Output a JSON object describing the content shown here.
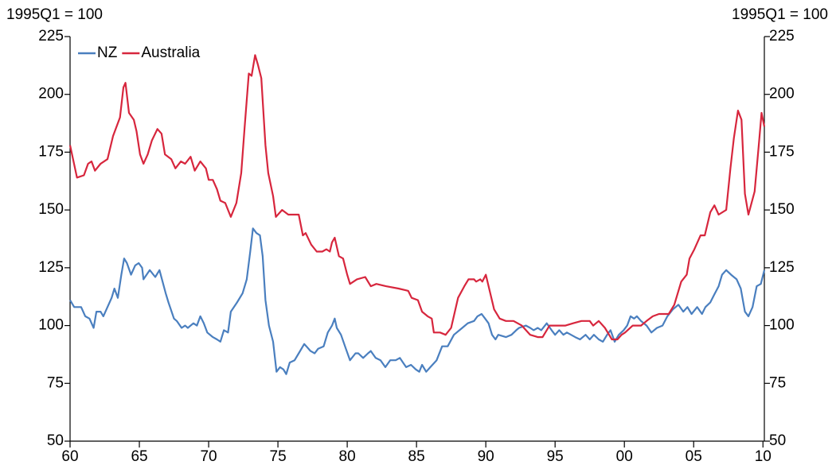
{
  "chart_data": {
    "type": "line",
    "ylabel": "1995Q1 = 100",
    "y2label": "1995Q1 = 100",
    "xlim": [
      1960,
      2010.1
    ],
    "xticks": [
      {
        "value": 1960,
        "label": "60"
      },
      {
        "value": 1965,
        "label": "65"
      },
      {
        "value": 1970,
        "label": "70"
      },
      {
        "value": 1975,
        "label": "75"
      },
      {
        "value": 1980,
        "label": "80"
      },
      {
        "value": 1985,
        "label": "85"
      },
      {
        "value": 1990,
        "label": "90"
      },
      {
        "value": 1995,
        "label": "95"
      },
      {
        "value": 2000,
        "label": "00"
      },
      {
        "value": 2005,
        "label": "05"
      },
      {
        "value": 2010,
        "label": "10"
      }
    ],
    "ylim": [
      50,
      225
    ],
    "yticks": [
      50,
      75,
      100,
      125,
      150,
      175,
      200,
      225
    ],
    "y2lim": [
      50,
      225
    ],
    "y2ticks": [
      50,
      75,
      100,
      125,
      150,
      175,
      200,
      225
    ],
    "legend": "upper left",
    "series": [
      {
        "name": "NZ",
        "color": "#4a7fbf",
        "x": [
          1960,
          1960.3,
          1960.8,
          1961.1,
          1961.4,
          1961.7,
          1961.9,
          1962.2,
          1962.4,
          1963,
          1963.2,
          1963.45,
          1963.7,
          1963.9,
          1964.1,
          1964.4,
          1964.7,
          1964.95,
          1965.2,
          1965.3,
          1965.75,
          1966.15,
          1966.45,
          1966.9,
          1967.1,
          1967.5,
          1967.7,
          1968.05,
          1968.3,
          1968.5,
          1968.9,
          1969.15,
          1969.4,
          1969.65,
          1969.9,
          1970.3,
          1970.6,
          1970.85,
          1971.1,
          1971.4,
          1971.6,
          1972.05,
          1972.45,
          1972.75,
          1973,
          1973.2,
          1973.45,
          1973.7,
          1973.9,
          1974.1,
          1974.35,
          1974.65,
          1974.9,
          1975.15,
          1975.4,
          1975.6,
          1975.85,
          1976.2,
          1976.5,
          1976.9,
          1977.05,
          1977.35,
          1977.65,
          1977.9,
          1978.3,
          1978.6,
          1978.9,
          1979.1,
          1979.25,
          1979.55,
          1979.9,
          1980.2,
          1980.6,
          1980.8,
          1981.15,
          1981.5,
          1981.7,
          1982.05,
          1982.4,
          1982.75,
          1983.1,
          1983.5,
          1983.8,
          1984.25,
          1984.6,
          1984.95,
          1985.2,
          1985.4,
          1985.7,
          1986,
          1986.45,
          1986.85,
          1987.25,
          1987.7,
          1988.3,
          1988.7,
          1989.15,
          1989.4,
          1989.7,
          1989.95,
          1990.2,
          1990.45,
          1990.7,
          1990.9,
          1991.45,
          1991.85,
          1992.2,
          1992.4,
          1992.9,
          1993.2,
          1993.45,
          1993.75,
          1994,
          1994.4,
          1994.75,
          1995,
          1995.3,
          1995.6,
          1995.85,
          1996.15,
          1996.45,
          1996.8,
          1997.2,
          1997.5,
          1997.8,
          1998.15,
          1998.45,
          1998.75,
          1999,
          1999.3,
          1999.6,
          1999.95,
          2000.2,
          2000.45,
          2000.7,
          2000.9,
          2001.2,
          2001.6,
          2001.95,
          2002.35,
          2002.75,
          2003.1,
          2003.5,
          2003.9,
          2004.25,
          2004.55,
          2004.85,
          2005.25,
          2005.6,
          2005.85,
          2006.2,
          2006.45,
          2006.8,
          2007.05,
          2007.35,
          2007.7,
          2008.1,
          2008.4,
          2008.7,
          2008.95,
          2009.25,
          2009.55,
          2009.85,
          2010.1
        ],
        "values": [
          111,
          108,
          108,
          104,
          103,
          99,
          106,
          106,
          104,
          112,
          116,
          112,
          122,
          129,
          127,
          122,
          126,
          127,
          125,
          120,
          124,
          121,
          124,
          114,
          110,
          103,
          102,
          99,
          100,
          99,
          101,
          100,
          104,
          101,
          97,
          95,
          94,
          93,
          98,
          97,
          106,
          110,
          114,
          120,
          132,
          142,
          140,
          139,
          130,
          111,
          100,
          93,
          80,
          82,
          81,
          79,
          84,
          85,
          88,
          92,
          91,
          89,
          88,
          90,
          91,
          97,
          100,
          103,
          99,
          96,
          90,
          85,
          88,
          88,
          86,
          88,
          89,
          86,
          85,
          82,
          85,
          85,
          86,
          82,
          83,
          81,
          80,
          83,
          80,
          82,
          85,
          91,
          91,
          96,
          99,
          101,
          102,
          104,
          105,
          103,
          101,
          96,
          94,
          96,
          95,
          96,
          98,
          99,
          100,
          99,
          98,
          99,
          98,
          101,
          98,
          96,
          98,
          96,
          97,
          96,
          95,
          94,
          96,
          94,
          96,
          94,
          93,
          96,
          98,
          93,
          96,
          98,
          100,
          104,
          103,
          104,
          102,
          100,
          97,
          99,
          100,
          104,
          107,
          109,
          106,
          108,
          105,
          108,
          105,
          108,
          110,
          113,
          117,
          122,
          124,
          122,
          120,
          116,
          106,
          104,
          108,
          117,
          118,
          124
        ]
      },
      {
        "name": "Australia",
        "color": "#d7263d",
        "x": [
          1960,
          1960.5,
          1961,
          1961.3,
          1961.55,
          1961.8,
          1962.2,
          1962.7,
          1963.1,
          1963.6,
          1963.85,
          1964,
          1964.25,
          1964.6,
          1964.8,
          1965.05,
          1965.3,
          1965.6,
          1965.9,
          1966.3,
          1966.6,
          1966.85,
          1967.3,
          1967.6,
          1968,
          1968.3,
          1968.7,
          1969,
          1969.4,
          1969.8,
          1970,
          1970.3,
          1970.6,
          1970.85,
          1971.2,
          1971.6,
          1972,
          1972.35,
          1972.6,
          1972.9,
          1973.1,
          1973.35,
          1973.55,
          1973.8,
          1974.1,
          1974.3,
          1974.65,
          1974.85,
          1975.3,
          1975.75,
          1976.1,
          1976.5,
          1976.8,
          1977,
          1977.4,
          1977.8,
          1978.2,
          1978.5,
          1978.75,
          1978.9,
          1979.1,
          1979.4,
          1979.7,
          1980,
          1980.2,
          1980.7,
          1981.3,
          1981.7,
          1982.1,
          1982.8,
          1983.7,
          1984.4,
          1984.65,
          1985.1,
          1985.4,
          1985.8,
          1986.1,
          1986.25,
          1986.7,
          1987.1,
          1987.5,
          1988,
          1988.45,
          1988.75,
          1989.15,
          1989.3,
          1989.6,
          1989.75,
          1990,
          1990.6,
          1991,
          1991.45,
          1992,
          1992.6,
          1993.2,
          1993.75,
          1994.1,
          1994.6,
          1995.2,
          1995.75,
          1996.3,
          1996.9,
          1997.5,
          1997.75,
          1998.15,
          1998.6,
          1999.1,
          1999.5,
          1999.8,
          2000.05,
          2000.6,
          2001.2,
          2001.6,
          2002.05,
          2002.5,
          2002.9,
          2003.2,
          2003.6,
          2004.1,
          2004.5,
          2004.7,
          2005.05,
          2005.5,
          2005.8,
          2006.2,
          2006.5,
          2006.8,
          2007.35,
          2007.65,
          2007.9,
          2008.2,
          2008.45,
          2008.7,
          2008.95,
          2009.4,
          2009.7,
          2009.9,
          2010.1
        ],
        "values": [
          178,
          164,
          165,
          170,
          171,
          167,
          170,
          172,
          182,
          190,
          203,
          205,
          192,
          189,
          184,
          174,
          170,
          174,
          180,
          185,
          183,
          174,
          172,
          168,
          171,
          170,
          173,
          167,
          171,
          168,
          163,
          163,
          159,
          154,
          153,
          147,
          153,
          166,
          186,
          209,
          208,
          217,
          213,
          207,
          178,
          166,
          156,
          147,
          150,
          148,
          148,
          148,
          139,
          140,
          135,
          132,
          132,
          133,
          132,
          136,
          138,
          130,
          129,
          122,
          118,
          120,
          121,
          117,
          118,
          117,
          116,
          115,
          112,
          111,
          106,
          104,
          103,
          97,
          97,
          96,
          99,
          112,
          117,
          120,
          120,
          119,
          120,
          119,
          122,
          107,
          103,
          102,
          102,
          100,
          96,
          95,
          95,
          100,
          100,
          100,
          101,
          102,
          102,
          100,
          102,
          99,
          94,
          94,
          96,
          97,
          100,
          100,
          102,
          104,
          105,
          105,
          105,
          109,
          119,
          122,
          129,
          133,
          139,
          139,
          149,
          152,
          148,
          150,
          168,
          181,
          193,
          189,
          157,
          148,
          158,
          178,
          192,
          186
        ]
      }
    ]
  }
}
